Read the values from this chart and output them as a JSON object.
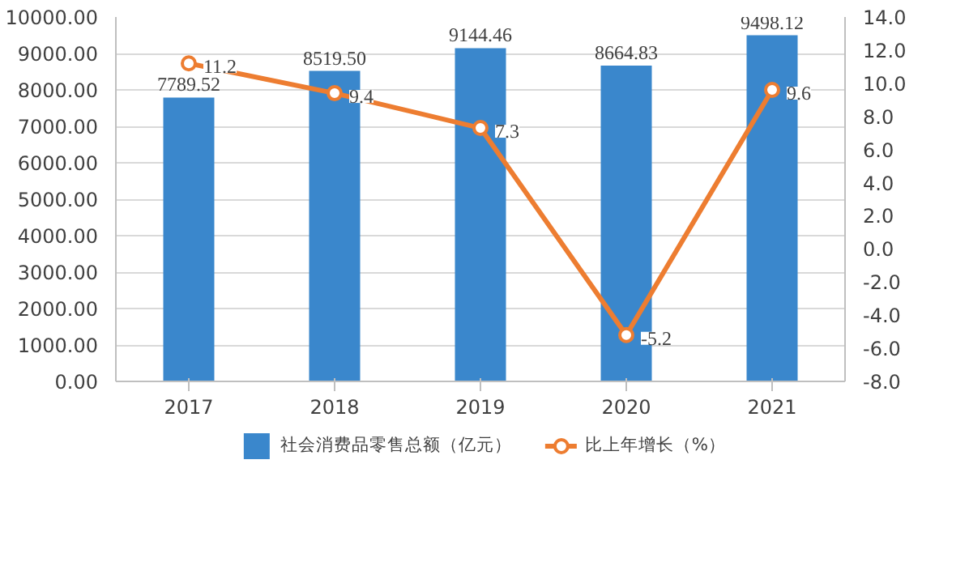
{
  "chart_data": {
    "type": "bar",
    "categories": [
      "2017",
      "2018",
      "2019",
      "2020",
      "2021"
    ],
    "series": [
      {
        "name": "社会消费品零售总额（亿元）",
        "color": "#3a87cc",
        "values": [
          7789.52,
          8519.5,
          9144.46,
          8664.83,
          9498.12
        ],
        "value_labels": [
          "7789.52",
          "8519.50",
          "9144.46",
          "8664.83",
          "9498.12"
        ]
      },
      {
        "name": "比上年增长（%）",
        "type": "line",
        "axis": "y2",
        "color": "#ed7d31",
        "marker": "circle",
        "values": [
          11.2,
          9.4,
          7.3,
          -5.2,
          9.6
        ],
        "value_labels": [
          "11.2",
          "9.4",
          "7.3",
          "-5.2",
          "9.6"
        ]
      }
    ],
    "ylim": [
      0,
      10000
    ],
    "yticks": [
      {
        "value": 0,
        "label": "0.00"
      },
      {
        "value": 1000,
        "label": "1000.00"
      },
      {
        "value": 2000,
        "label": "2000.00"
      },
      {
        "value": 3000,
        "label": "3000.00"
      },
      {
        "value": 4000,
        "label": "4000.00"
      },
      {
        "value": 5000,
        "label": "5000.00"
      },
      {
        "value": 6000,
        "label": "6000.00"
      },
      {
        "value": 7000,
        "label": "7000.00"
      },
      {
        "value": 8000,
        "label": "8000.00"
      },
      {
        "value": 9000,
        "label": "9000.00"
      },
      {
        "value": 10000,
        "label": "10000.00"
      }
    ],
    "y2lim": [
      -8,
      14
    ],
    "y2ticks": [
      {
        "value": -8,
        "label": "-8.0"
      },
      {
        "value": -6,
        "label": "-6.0"
      },
      {
        "value": -4,
        "label": "-4.0"
      },
      {
        "value": -2,
        "label": "-2.0"
      },
      {
        "value": 0,
        "label": "0.0"
      },
      {
        "value": 2,
        "label": "2.0"
      },
      {
        "value": 4,
        "label": "4.0"
      },
      {
        "value": 6,
        "label": "6.0"
      },
      {
        "value": 8,
        "label": "8.0"
      },
      {
        "value": 10,
        "label": "10.0"
      },
      {
        "value": 12,
        "label": "12.0"
      },
      {
        "value": 14,
        "label": "14.0"
      }
    ],
    "grid": "y",
    "legend": "bottom"
  }
}
